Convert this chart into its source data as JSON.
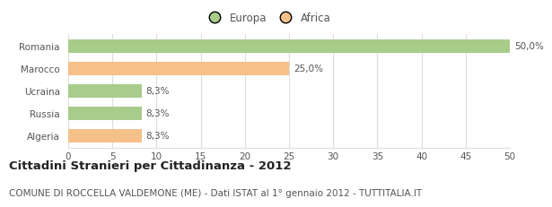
{
  "categories": [
    "Algeria",
    "Russia",
    "Ucraina",
    "Marocco",
    "Romania"
  ],
  "values": [
    8.3,
    8.3,
    8.3,
    25.0,
    50.0
  ],
  "colors": [
    "#f5c08a",
    "#a8cc8a",
    "#a8cc8a",
    "#f5c08a",
    "#a8cc8a"
  ],
  "labels": [
    "8,3%",
    "8,3%",
    "8,3%",
    "25,0%",
    "50,0%"
  ],
  "legend_europa_color": "#a8cc8a",
  "legend_africa_color": "#f5c08a",
  "legend_europa_label": "Europa",
  "legend_africa_label": "Africa",
  "xlim": [
    0,
    50
  ],
  "xticks": [
    0,
    5,
    10,
    15,
    20,
    25,
    30,
    35,
    40,
    45,
    50
  ],
  "title": "Cittadini Stranieri per Cittadinanza - 2012",
  "subtitle": "COMUNE DI ROCCELLA VALDEMONE (ME) - Dati ISTAT al 1° gennaio 2012 - TUTTITALIA.IT",
  "bg_color": "#ffffff",
  "grid_color": "#dddddd",
  "bar_height": 0.6,
  "title_fontsize": 9.5,
  "subtitle_fontsize": 7.5,
  "label_fontsize": 7.5,
  "tick_fontsize": 7.5,
  "legend_fontsize": 8.5,
  "text_color": "#555555"
}
